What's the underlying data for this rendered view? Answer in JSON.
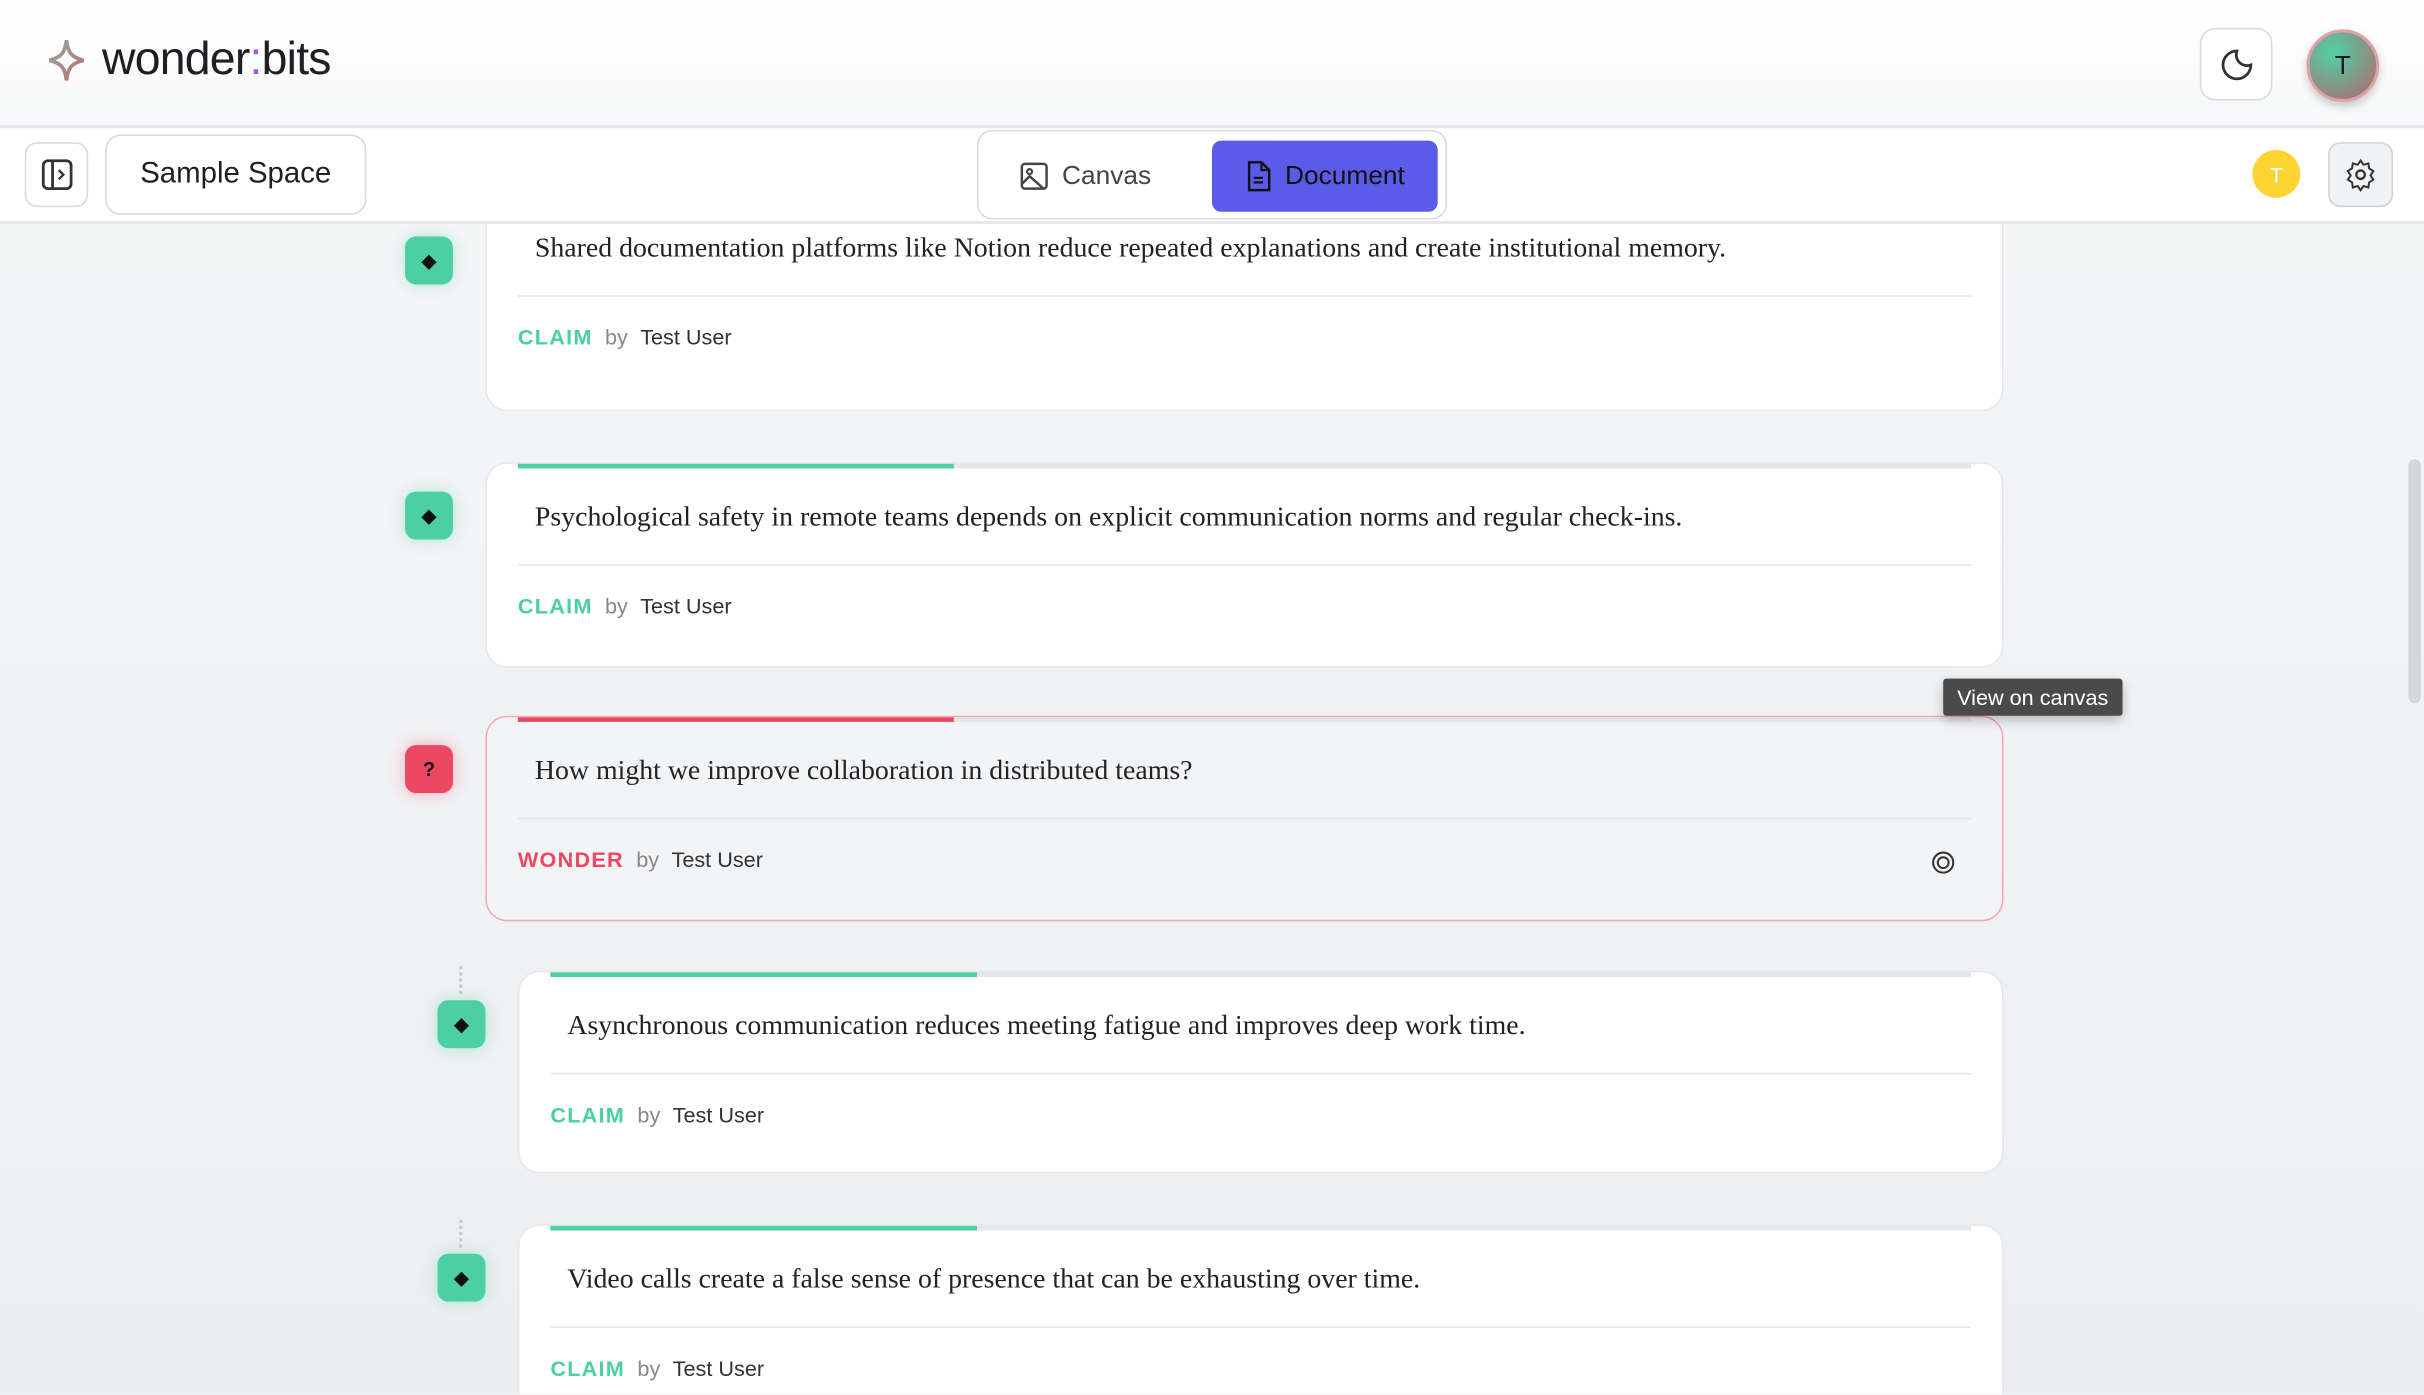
{
  "header": {
    "logo_left": "wonder",
    "logo_colon": ":",
    "logo_right": "bits",
    "avatar_initial": "T",
    "theme_icon": "moon-icon"
  },
  "toolbar": {
    "space_name": "Sample Space",
    "tabs": [
      {
        "label": "Canvas",
        "active": false
      },
      {
        "label": "Document",
        "active": true
      }
    ],
    "user_chip": "T"
  },
  "colors": {
    "accent": "#5b5bea",
    "claim": "#4ccfa2",
    "wonder": "#ec4863",
    "user_chip": "#fcd535"
  },
  "cards": [
    {
      "text": "Shared documentation platforms like Notion reduce repeated explanations and create institutional memory.",
      "type": "CLAIM",
      "by": "by",
      "user": "Test User",
      "progress": 30
    },
    {
      "text": "Psychological safety in remote teams depends on explicit communication norms and regular check-ins.",
      "type": "CLAIM",
      "by": "by",
      "user": "Test User",
      "progress": 30
    },
    {
      "text": "How might we improve collaboration in distributed teams?",
      "type": "WONDER",
      "by": "by",
      "user": "Test User",
      "progress": 30
    },
    {
      "text": "Asynchronous communication reduces meeting fatigue and improves deep work time.",
      "type": "CLAIM",
      "by": "by",
      "user": "Test User",
      "progress": 30
    },
    {
      "text": "Video calls create a false sense of presence that can be exhausting over time.",
      "type": "CLAIM",
      "by": "by",
      "user": "Test User",
      "progress": 30
    }
  ],
  "node_glyphs": {
    "claim": "◆",
    "wonder": "?"
  },
  "tooltip": "View on canvas"
}
